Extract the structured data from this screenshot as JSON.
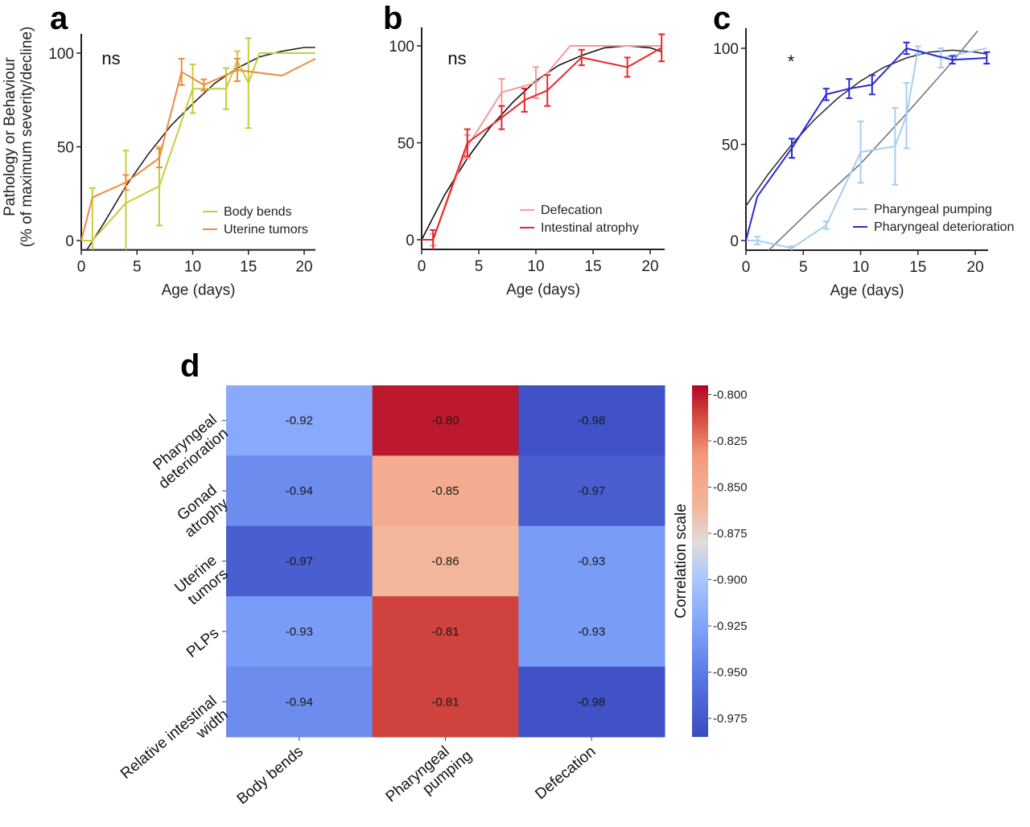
{
  "chart_data": [
    {
      "type": "line",
      "panel": "a",
      "significance": "ns",
      "xlabel": "Age (days)",
      "ylabel": [
        "Pathology or Behaviour",
        "(% of maximum severity/decline)"
      ],
      "xlim": [
        0,
        21
      ],
      "ylim": [
        -5,
        110
      ],
      "xticks": [
        0,
        5,
        10,
        15,
        20
      ],
      "yticks": [
        0,
        50,
        100
      ],
      "legend_position": "bottom-right",
      "series": [
        {
          "name": "Body bends",
          "color": "#c8cc3a",
          "x": [
            0,
            1,
            4,
            7,
            10,
            11,
            13,
            14,
            15,
            16,
            21
          ],
          "y": [
            0,
            0,
            20,
            29,
            81,
            81,
            81,
            96,
            84,
            100,
            100
          ],
          "err": [
            0,
            28,
            28,
            21,
            13,
            0,
            11,
            5,
            24,
            0,
            0
          ]
        },
        {
          "name": "Uterine tumors",
          "color": "#f08a3c",
          "x": [
            0,
            1,
            4,
            7,
            9,
            11,
            14,
            18,
            21
          ],
          "y": [
            0,
            23,
            31,
            44,
            90,
            83,
            91,
            88,
            97
          ],
          "err": [
            0,
            0,
            4,
            5,
            7,
            3,
            6,
            0,
            0
          ]
        }
      ],
      "fit": {
        "name": "fit",
        "color": "#222222",
        "x": [
          0.5,
          2,
          4,
          6,
          8,
          10,
          12,
          14,
          16,
          18,
          20,
          21
        ],
        "y": [
          -5,
          9,
          29,
          46,
          61,
          73,
          84,
          92,
          98,
          101,
          103,
          103
        ]
      }
    },
    {
      "type": "line",
      "panel": "b",
      "significance": "ns",
      "xlabel": "Age (days)",
      "xlim": [
        0,
        21
      ],
      "ylim": [
        -5,
        110
      ],
      "xticks": [
        0,
        5,
        10,
        15,
        20
      ],
      "yticks": [
        0,
        50,
        100
      ],
      "legend_position": "bottom-right",
      "series": [
        {
          "name": "Defecation",
          "color": "#f59a9a",
          "x": [
            0,
            1,
            4,
            7,
            10,
            11,
            13,
            21
          ],
          "y": [
            0,
            0,
            48,
            76,
            81,
            86,
            100,
            100
          ],
          "err": [
            0,
            3,
            6,
            7,
            8,
            0,
            0,
            0
          ]
        },
        {
          "name": "Intestinal atrophy",
          "color": "#e8272a",
          "x": [
            0,
            1,
            4,
            7,
            9,
            11,
            14,
            18,
            21
          ],
          "y": [
            0,
            0,
            50,
            63,
            72,
            77,
            94,
            89,
            99
          ],
          "err": [
            0,
            5,
            7,
            6,
            6,
            8,
            4,
            5,
            7
          ]
        }
      ],
      "fit": {
        "name": "fit",
        "color": "#111111",
        "x": [
          0,
          2,
          4,
          6,
          8,
          10,
          12,
          14,
          16,
          18,
          20,
          21
        ],
        "y": [
          0,
          23,
          42,
          58,
          71,
          82,
          90,
          95,
          99,
          100,
          99,
          97
        ]
      }
    },
    {
      "type": "line",
      "panel": "c",
      "significance": "*",
      "xlabel": "Age (days)",
      "xlim": [
        0,
        21
      ],
      "ylim": [
        -5,
        110
      ],
      "xticks": [
        0,
        5,
        10,
        15,
        20
      ],
      "yticks": [
        0,
        50,
        100
      ],
      "legend_position": "bottom-right",
      "series": [
        {
          "name": "Pharyngeal pumping",
          "color": "#a8cdf0",
          "x": [
            0,
            1,
            4,
            7,
            10,
            13,
            14,
            15,
            17,
            21
          ],
          "y": [
            0,
            0,
            -4,
            8,
            46,
            49,
            65,
            99,
            95,
            100
          ],
          "err": [
            0,
            2,
            1,
            2,
            16,
            20,
            17,
            2,
            5,
            0
          ]
        },
        {
          "name": "Pharyngeal deterioration",
          "color": "#2a2ad6",
          "x": [
            0,
            1,
            4,
            7,
            9,
            11,
            14,
            16,
            18,
            21
          ],
          "y": [
            0,
            23,
            48,
            76,
            79,
            81,
            100,
            97,
            94,
            95
          ],
          "err": [
            0,
            0,
            5,
            3,
            5,
            5,
            3,
            0,
            2,
            3
          ]
        }
      ],
      "fits": [
        {
          "name": "fit-deterioration",
          "color": "#333333",
          "x": [
            0,
            2,
            4,
            6,
            8,
            10,
            12,
            14,
            16,
            18,
            20,
            21
          ],
          "y": [
            18,
            35,
            50,
            63,
            74,
            83,
            90,
            95,
            98,
            99,
            98,
            97
          ]
        },
        {
          "name": "fit-pumping",
          "color": "#777777",
          "x": [
            2,
            6,
            10,
            14,
            18,
            20.2
          ],
          "y": [
            -5,
            18,
            40,
            66,
            93,
            109
          ]
        }
      ]
    },
    {
      "type": "heatmap",
      "panel": "d",
      "rows": [
        "Pharyngeal deterioration",
        "Gonad atrophy",
        "Uterine tumors",
        "PLPs",
        "Relative intestinal width"
      ],
      "row_labels": [
        [
          "Pharyngeal",
          "deterioration"
        ],
        [
          "Gonad",
          "atrophy"
        ],
        [
          "Uterine",
          "tumors"
        ],
        [
          "PLPs"
        ],
        [
          "Relative intestinal",
          "width"
        ]
      ],
      "columns": [
        "Body bends",
        "Pharyngeal pumping",
        "Defecation"
      ],
      "column_labels": [
        [
          "Body bends"
        ],
        [
          "Pharyngeal",
          "pumping"
        ],
        [
          "Defecation"
        ]
      ],
      "values": [
        [
          -0.92,
          -0.8,
          -0.98
        ],
        [
          -0.94,
          -0.85,
          -0.97
        ],
        [
          -0.97,
          -0.86,
          -0.93
        ],
        [
          -0.93,
          -0.81,
          -0.93
        ],
        [
          -0.94,
          -0.81,
          -0.98
        ]
      ],
      "value_labels": [
        [
          "-0.92",
          "-0.80",
          "-0.98"
        ],
        [
          "-0.94",
          "-0.85",
          "-0.97"
        ],
        [
          "-0.97",
          "-0.86",
          "-0.93"
        ],
        [
          "-0.93",
          "-0.81",
          "-0.93"
        ],
        [
          "-0.94",
          "-0.81",
          "-0.98"
        ]
      ],
      "colormap": "coolwarm",
      "vmin": -0.985,
      "vmax": -0.795,
      "colorbar": {
        "label": "Correlation scale",
        "ticks": [
          -0.8,
          -0.825,
          -0.85,
          -0.875,
          -0.9,
          -0.925,
          -0.95,
          -0.975
        ],
        "tick_labels": [
          "-0.800",
          "-0.825",
          "-0.850",
          "-0.875",
          "-0.900",
          "-0.925",
          "-0.950",
          "-0.975"
        ],
        "position": "right"
      }
    }
  ],
  "panels": {
    "a": {
      "letter": "a"
    },
    "b": {
      "letter": "b"
    },
    "c": {
      "letter": "c"
    },
    "d": {
      "letter": "d"
    }
  }
}
